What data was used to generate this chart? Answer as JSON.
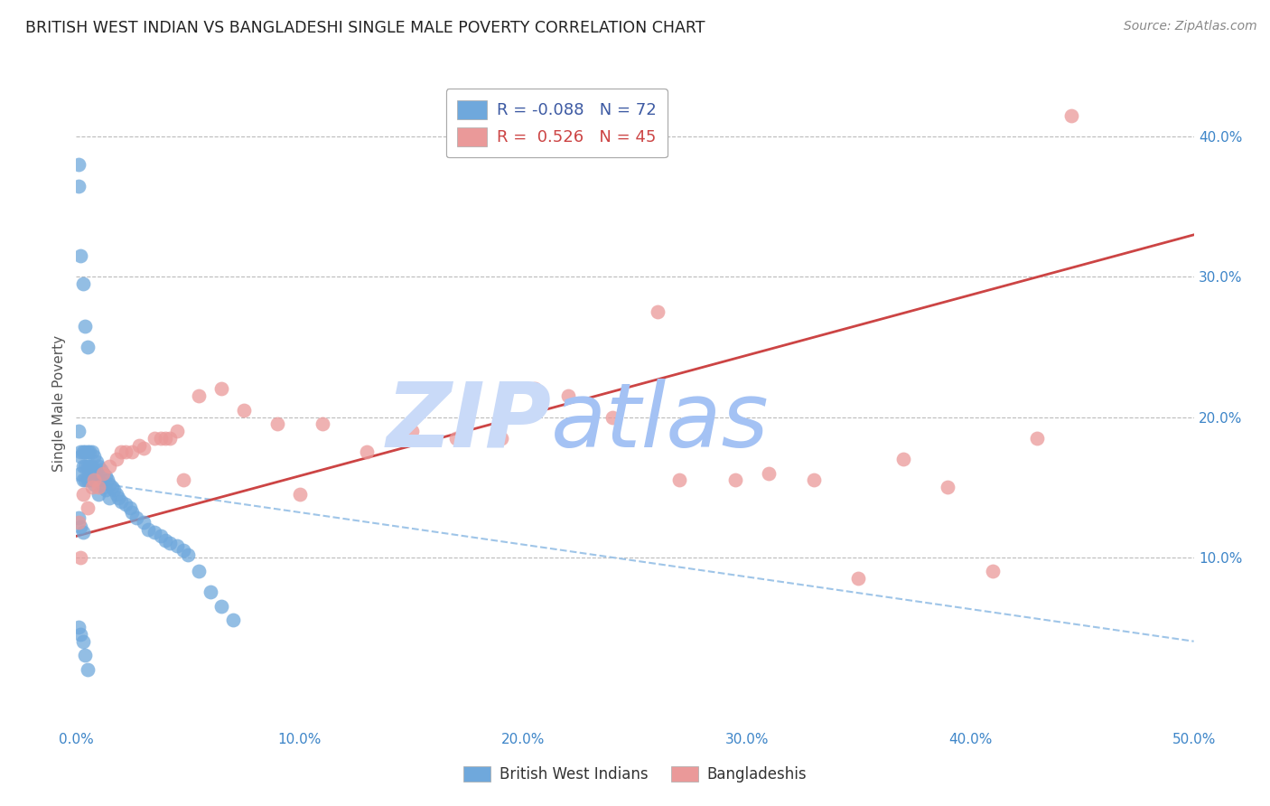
{
  "title": "BRITISH WEST INDIAN VS BANGLADESHI SINGLE MALE POVERTY CORRELATION CHART",
  "source": "Source: ZipAtlas.com",
  "ylabel": "Single Male Poverty",
  "xlim": [
    0.0,
    0.5
  ],
  "ylim": [
    -0.02,
    0.44
  ],
  "xticks": [
    0.0,
    0.1,
    0.2,
    0.3,
    0.4,
    0.5
  ],
  "xticklabels": [
    "0.0%",
    "10.0%",
    "20.0%",
    "30.0%",
    "40.0%",
    "50.0%"
  ],
  "yticks_right": [
    0.1,
    0.2,
    0.3,
    0.4
  ],
  "yticklabels_right": [
    "10.0%",
    "20.0%",
    "30.0%",
    "40.0%"
  ],
  "blue_color": "#6fa8dc",
  "pink_color": "#ea9999",
  "blue_line_color": "#9fc5e8",
  "pink_line_color": "#cc4444",
  "watermark_zip_color": "#c9daf8",
  "watermark_atlas_color": "#a4c2f4",
  "blue_x": [
    0.001,
    0.001,
    0.001,
    0.002,
    0.002,
    0.002,
    0.002,
    0.003,
    0.003,
    0.003,
    0.003,
    0.004,
    0.004,
    0.004,
    0.004,
    0.005,
    0.005,
    0.005,
    0.005,
    0.006,
    0.006,
    0.006,
    0.007,
    0.007,
    0.007,
    0.008,
    0.008,
    0.008,
    0.009,
    0.009,
    0.01,
    0.01,
    0.01,
    0.011,
    0.011,
    0.012,
    0.012,
    0.013,
    0.013,
    0.014,
    0.015,
    0.015,
    0.016,
    0.017,
    0.018,
    0.019,
    0.02,
    0.022,
    0.024,
    0.025,
    0.027,
    0.03,
    0.032,
    0.035,
    0.038,
    0.04,
    0.042,
    0.045,
    0.048,
    0.05,
    0.055,
    0.06,
    0.065,
    0.07,
    0.001,
    0.002,
    0.003,
    0.001,
    0.002,
    0.003,
    0.004,
    0.005
  ],
  "blue_y": [
    0.38,
    0.365,
    0.19,
    0.315,
    0.175,
    0.172,
    0.16,
    0.295,
    0.175,
    0.165,
    0.155,
    0.265,
    0.175,
    0.165,
    0.155,
    0.25,
    0.175,
    0.165,
    0.155,
    0.175,
    0.165,
    0.155,
    0.175,
    0.165,
    0.155,
    0.172,
    0.162,
    0.152,
    0.168,
    0.158,
    0.165,
    0.155,
    0.145,
    0.162,
    0.152,
    0.16,
    0.15,
    0.158,
    0.148,
    0.155,
    0.152,
    0.142,
    0.15,
    0.148,
    0.145,
    0.142,
    0.14,
    0.138,
    0.135,
    0.132,
    0.128,
    0.125,
    0.12,
    0.118,
    0.115,
    0.112,
    0.11,
    0.108,
    0.105,
    0.102,
    0.09,
    0.075,
    0.065,
    0.055,
    0.128,
    0.122,
    0.118,
    0.05,
    0.045,
    0.04,
    0.03,
    0.02
  ],
  "pink_x": [
    0.001,
    0.003,
    0.005,
    0.007,
    0.008,
    0.01,
    0.012,
    0.015,
    0.018,
    0.02,
    0.022,
    0.025,
    0.028,
    0.03,
    0.035,
    0.038,
    0.04,
    0.042,
    0.045,
    0.048,
    0.055,
    0.065,
    0.075,
    0.09,
    0.1,
    0.11,
    0.13,
    0.15,
    0.17,
    0.19,
    0.205,
    0.22,
    0.24,
    0.26,
    0.27,
    0.295,
    0.31,
    0.33,
    0.35,
    0.37,
    0.39,
    0.41,
    0.43,
    0.445,
    0.002
  ],
  "pink_y": [
    0.125,
    0.145,
    0.135,
    0.15,
    0.155,
    0.15,
    0.16,
    0.165,
    0.17,
    0.175,
    0.175,
    0.175,
    0.18,
    0.178,
    0.185,
    0.185,
    0.185,
    0.185,
    0.19,
    0.155,
    0.215,
    0.22,
    0.205,
    0.195,
    0.145,
    0.195,
    0.175,
    0.19,
    0.185,
    0.185,
    0.22,
    0.215,
    0.2,
    0.275,
    0.155,
    0.155,
    0.16,
    0.155,
    0.085,
    0.17,
    0.15,
    0.09,
    0.185,
    0.415,
    0.1
  ],
  "blue_trend_x": [
    0.0,
    0.5
  ],
  "blue_trend_y": [
    0.155,
    0.04
  ],
  "pink_trend_x": [
    0.0,
    0.5
  ],
  "pink_trend_y": [
    0.115,
    0.33
  ]
}
